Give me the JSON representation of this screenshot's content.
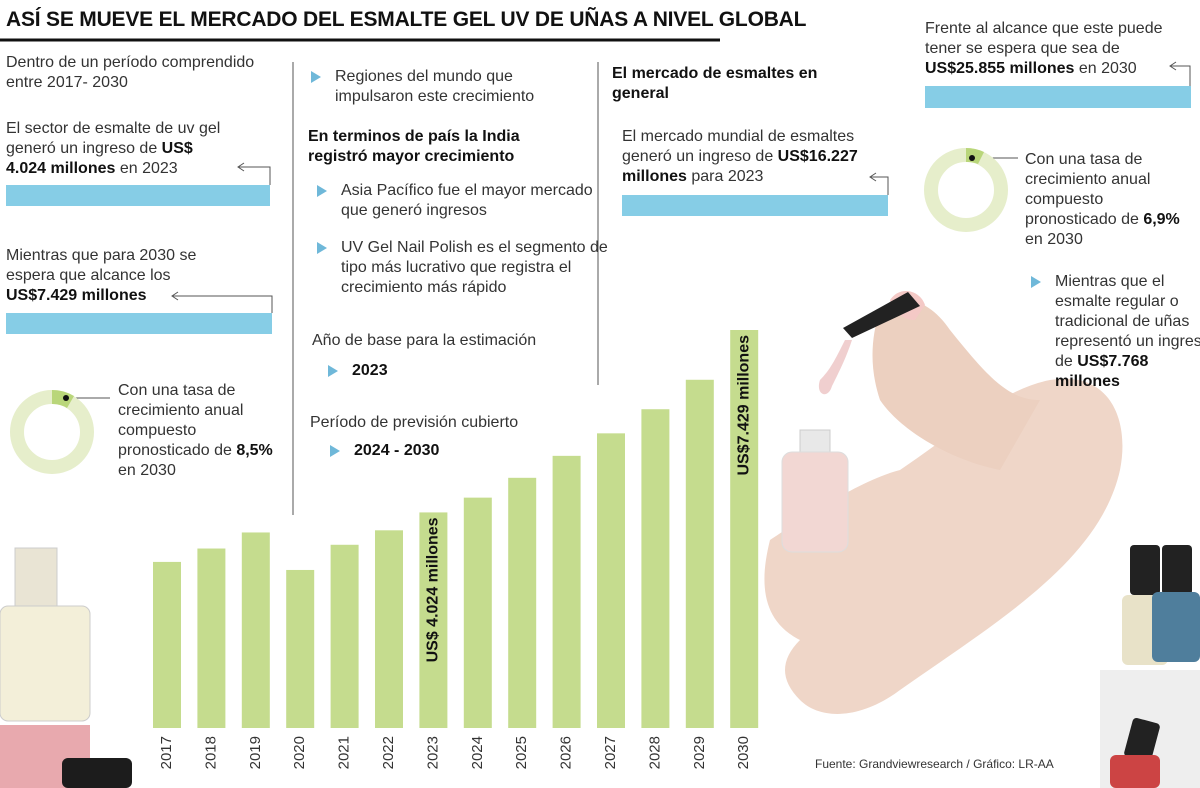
{
  "title": "ASÍ SE MUEVE EL MERCADO DEL ESMALTE GEL UV DE UÑAS A NIVEL GLOBAL",
  "left": {
    "intro": [
      {
        "text": "Dentro de un período comprendido entre 2017- 2030"
      }
    ],
    "sector": [
      {
        "text": "El sector de esmalte de uv gel generó un ingreso de "
      },
      {
        "text": "US$ 4.024 millones",
        "bold": true
      },
      {
        "text": " en 2023"
      }
    ],
    "forecast": [
      {
        "text": "Mientras que para 2030 se espera que alcance los "
      },
      {
        "text": "US$7.429 millones",
        "bold": true
      }
    ],
    "cagr": [
      {
        "text": "Con una tasa de crecimiento anual compuesto pronosticado de "
      },
      {
        "text": "8,5%",
        "bold": true
      },
      {
        "text": " en 2030"
      }
    ]
  },
  "middle": {
    "regions": [
      {
        "text": "Regiones del mundo que impulsaron este crecimiento"
      }
    ],
    "india": [
      {
        "text": "En terminos de país la India registró mayor crecimiento",
        "bold": true
      }
    ],
    "asia": [
      {
        "text": "Asia Pacífico fue el mayor mercado que generó ingresos"
      }
    ],
    "segment": [
      {
        "text": "UV Gel Nail Polish es el segmento de tipo más lucrativo que registra el crecimiento más rápido"
      }
    ],
    "base_label": [
      {
        "text": "Año de base para la estimación"
      }
    ],
    "base_value": [
      {
        "text": "2023",
        "bold": true
      }
    ],
    "period_label": [
      {
        "text": "Período de previsión cubierto"
      }
    ],
    "period_value": [
      {
        "text": "2024 - 2030",
        "bold": true
      }
    ]
  },
  "market": {
    "heading": [
      {
        "text": "El mercado de esmaltes en general",
        "bold": true
      }
    ],
    "revenue": [
      {
        "text": "El mercado mundial de esmaltes generó un ingreso de "
      },
      {
        "text": "US$16.227 millones",
        "bold": true
      },
      {
        "text": " para 2023"
      }
    ]
  },
  "right": {
    "reach": [
      {
        "text": "Frente al alcance que este puede tener se espera que sea de "
      },
      {
        "text": "US$25.855 millones",
        "bold": true
      },
      {
        "text": " en 2030"
      }
    ],
    "cagr": [
      {
        "text": "Con una tasa de crecimiento anual compuesto pronosticado de "
      },
      {
        "text": "6,9%",
        "bold": true
      },
      {
        "text": " en 2030"
      }
    ],
    "regular": [
      {
        "text": "Mientras que el esmalte regular o tradicional de uñas representó un ingreso de "
      },
      {
        "text": "US$7.768 millones",
        "bold": true
      }
    ]
  },
  "source": "Fuente: Grandviewresearch / Gráfico: LR-AA",
  "chart_data": {
    "type": "bar",
    "categories": [
      "2017",
      "2018",
      "2019",
      "2020",
      "2021",
      "2022",
      "2023",
      "2024",
      "2025",
      "2026",
      "2027",
      "2028",
      "2029",
      "2030"
    ],
    "values": [
      3.1,
      3.35,
      3.65,
      2.95,
      3.42,
      3.69,
      4.024,
      4.3,
      4.67,
      5.08,
      5.5,
      5.95,
      6.5,
      7.429
    ],
    "value_labels": [
      null,
      null,
      null,
      null,
      null,
      null,
      "US$ 4.024 millones",
      null,
      null,
      null,
      null,
      null,
      null,
      "US$7.429 millones"
    ],
    "color": "#c5dc8e"
  }
}
